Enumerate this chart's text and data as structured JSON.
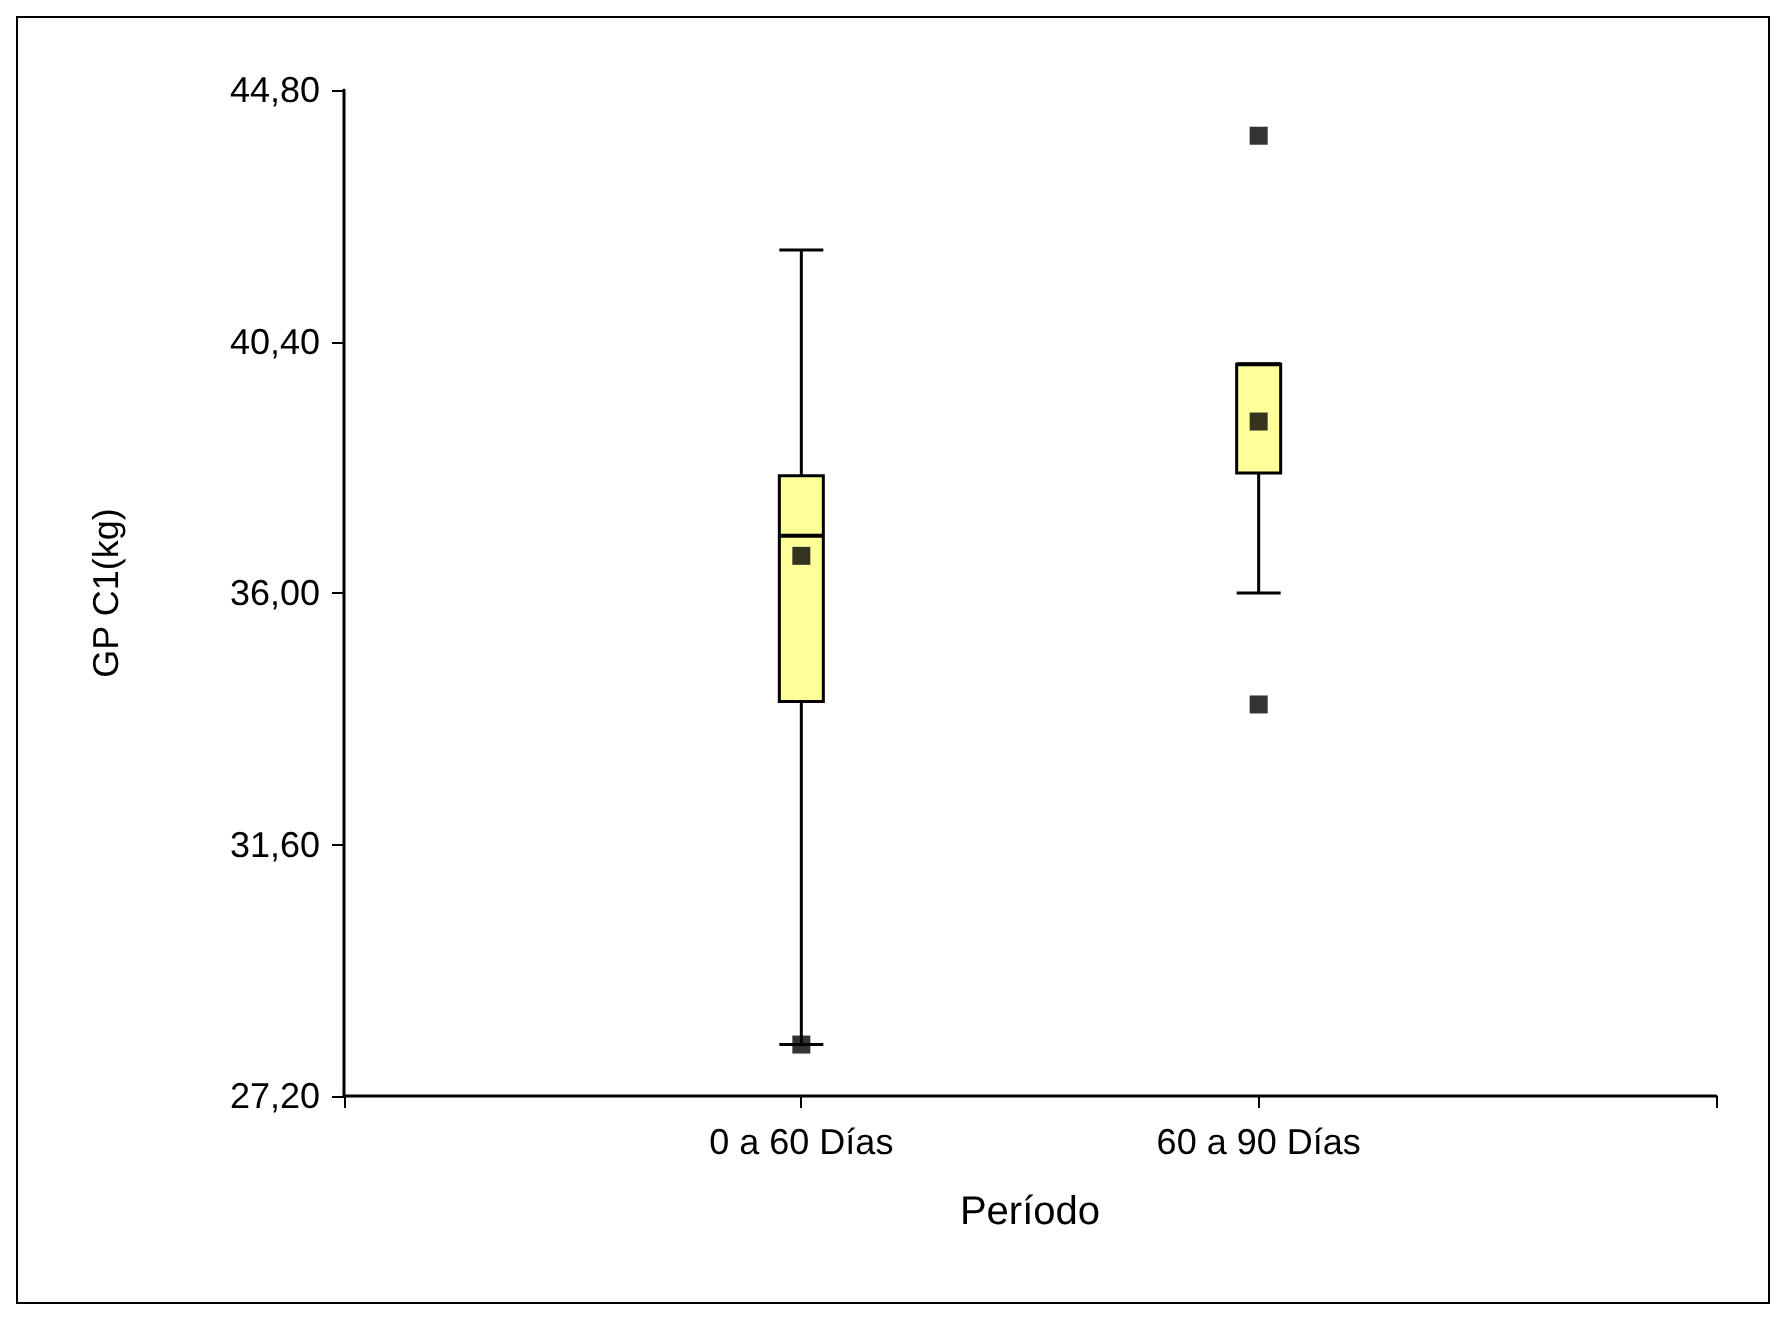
{
  "chart_data": {
    "type": "box",
    "xlabel": "Período",
    "ylabel": "GP C1(kg)",
    "categories": [
      "0 a 60 Días",
      "60 a 90 Días"
    ],
    "boxes": [
      {
        "low": 28.1,
        "q1": 34.1,
        "median": 37.0,
        "q3": 38.05,
        "high": 42.0,
        "mean": 36.65,
        "outliers": [
          28.1
        ]
      },
      {
        "low": 36.0,
        "q1": 38.1,
        "median": 40.0,
        "q3": 40.0,
        "high": 40.0,
        "mean": 39.0,
        "outliers": [
          44.0,
          34.05
        ]
      }
    ],
    "color": "#ffff99",
    "marker": "square",
    "grid": false,
    "ylim": [
      27.2,
      44.8
    ],
    "yticks": [
      {
        "value": 27.2,
        "label": "27,20"
      },
      {
        "value": 31.6,
        "label": "31,60"
      },
      {
        "value": 36.0,
        "label": "36,00"
      },
      {
        "value": 40.4,
        "label": "40,40"
      },
      {
        "value": 44.8,
        "label": "44,80"
      }
    ]
  }
}
